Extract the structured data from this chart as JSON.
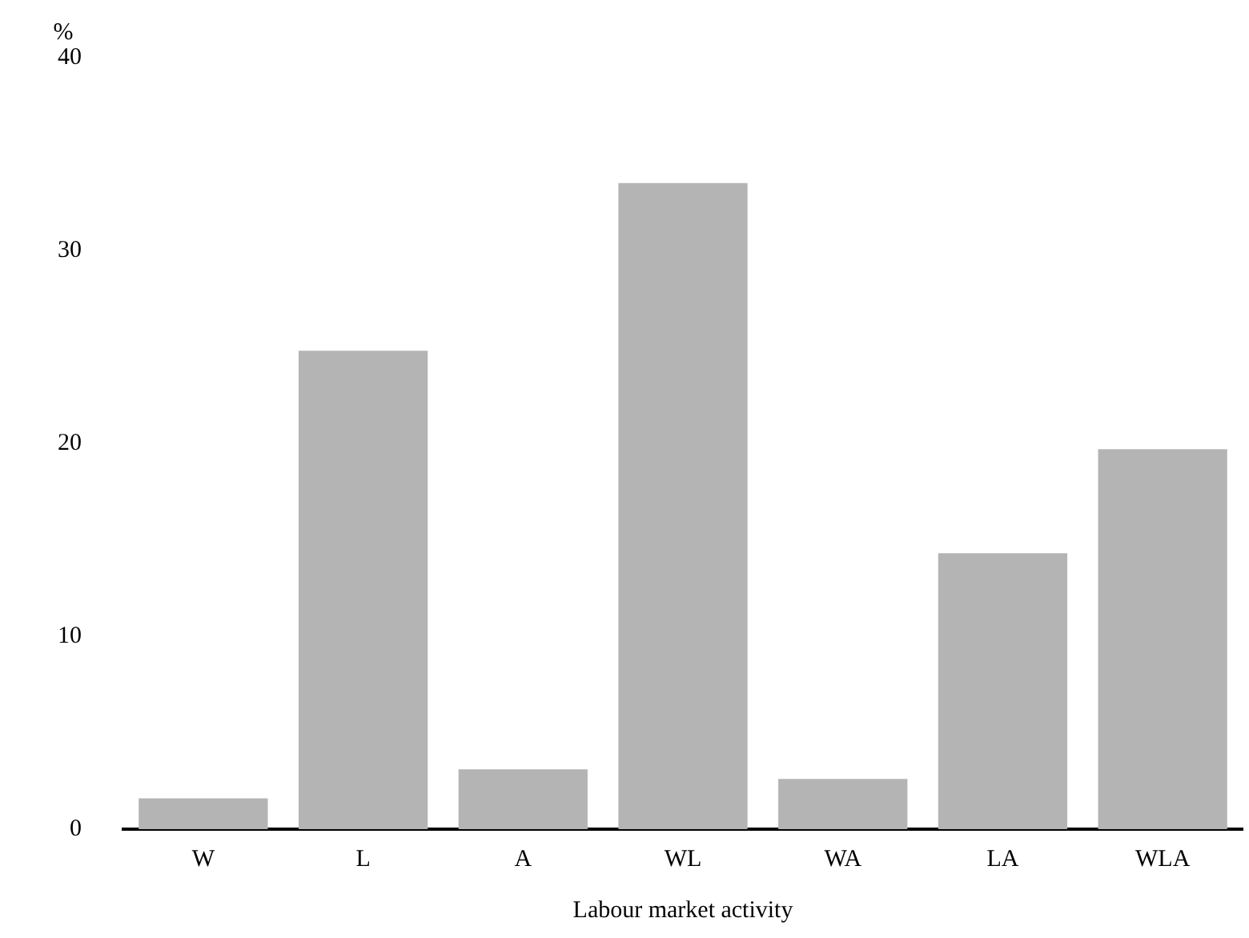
{
  "chart_data": {
    "type": "bar",
    "xlabel": "Labour market activity",
    "ylabel": "%",
    "categories": [
      "W",
      "L",
      "A",
      "WL",
      "WA",
      "LA",
      "WLA"
    ],
    "values": [
      1.6,
      24.8,
      3.1,
      33.5,
      2.6,
      14.3,
      19.7
    ],
    "color": "#b4b4b4",
    "ylim": [
      0,
      40
    ],
    "yticks": [
      0,
      10,
      20,
      30,
      40
    ],
    "grid": false,
    "legend": false
  }
}
